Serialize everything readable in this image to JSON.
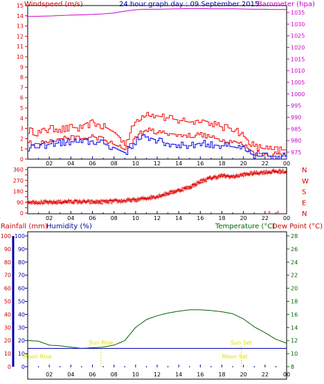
{
  "title": "24 hour graph day : 09 September 2015",
  "colors": {
    "wind": "#e00000",
    "gust": "#ff0000",
    "wind_avg": "#0000ee",
    "baro": "#cc00cc",
    "direction": "#e00000",
    "dir_labels": "#e00000",
    "rain": "#cc0000",
    "humidity": "#0000aa",
    "temp": "#006400",
    "dew": "#cc0000",
    "sun": "#dddd00",
    "moon": "#dddd00",
    "frame": "#000000",
    "hour_tick": "#000088"
  },
  "x_tick_labels": [
    "02",
    "04",
    "06",
    "08",
    "10",
    "12",
    "14",
    "16",
    "18",
    "20",
    "22",
    "00"
  ],
  "chart_data": [
    {
      "type": "line",
      "name": "wind-barometer",
      "left_axis_label": "Windspeed (m/s)",
      "right_axis_label": "Barometer (hpa)",
      "left_ylim": [
        0,
        15
      ],
      "left_ticks": [
        0,
        1,
        2,
        3,
        4,
        5,
        6,
        7,
        8,
        9,
        10,
        11,
        12,
        13,
        14,
        15
      ],
      "right_ylim": [
        972,
        1038
      ],
      "right_ticks": [
        975,
        980,
        985,
        990,
        995,
        1000,
        1005,
        1010,
        1015,
        1020,
        1025,
        1030,
        1035
      ],
      "x_hours": [
        0,
        1,
        2,
        3,
        4,
        5,
        6,
        7,
        8,
        9,
        10,
        11,
        12,
        13,
        14,
        15,
        16,
        17,
        18,
        19,
        20,
        21,
        22,
        23,
        24
      ],
      "series": [
        {
          "key": "gust",
          "values": [
            2.8,
            2.5,
            3.0,
            2.9,
            3.1,
            3.0,
            3.6,
            3.2,
            2.6,
            1.6,
            3.8,
            4.6,
            4.2,
            4.0,
            3.8,
            3.6,
            3.9,
            3.5,
            3.1,
            3.0,
            2.2,
            1.2,
            1.0,
            0.9,
            0.9
          ]
        },
        {
          "key": "wind",
          "values": [
            1.6,
            1.5,
            1.9,
            2.0,
            2.1,
            2.0,
            2.2,
            1.9,
            1.4,
            0.9,
            2.3,
            2.9,
            2.6,
            2.5,
            2.4,
            2.3,
            2.4,
            2.1,
            1.9,
            1.8,
            1.3,
            0.6,
            0.5,
            0.5,
            0.5
          ]
        },
        {
          "key": "wind_avg",
          "values": [
            1.1,
            1.1,
            1.5,
            1.6,
            1.7,
            1.6,
            1.8,
            1.5,
            1.1,
            0.6,
            1.8,
            2.2,
            1.8,
            1.5,
            1.4,
            1.3,
            1.6,
            1.4,
            1.3,
            1.2,
            0.9,
            0.3,
            0.3,
            0.3,
            0.3
          ]
        },
        {
          "key": "baro",
          "values": [
            1033.3,
            1033.4,
            1033.5,
            1033.7,
            1033.9,
            1034.0,
            1034.2,
            1034.4,
            1034.8,
            1035.6,
            1036.2,
            1036.4,
            1036.4,
            1036.5,
            1036.6,
            1036.7,
            1036.7,
            1036.6,
            1036.6,
            1036.6,
            1036.5,
            1036.4,
            1036.4,
            1036.3,
            1036.3
          ]
        }
      ]
    },
    {
      "type": "scatter",
      "name": "wind-direction",
      "ylim": [
        0,
        360
      ],
      "ticks": [
        0,
        45,
        90,
        135,
        180,
        225,
        270,
        315,
        360
      ],
      "right_labels": [
        "N",
        "W",
        "S",
        "E",
        "N"
      ],
      "trend": {
        "x": [
          0,
          1,
          2,
          3,
          4,
          5,
          6,
          7,
          8,
          9,
          10,
          11,
          12,
          13,
          14,
          15,
          16,
          17,
          18,
          19,
          20,
          21,
          22,
          23,
          24
        ],
        "y": [
          95,
          92,
          88,
          94,
          96,
          95,
          92,
          95,
          98,
          104,
          110,
          125,
          140,
          165,
          190,
          215,
          262,
          292,
          310,
          302,
          318,
          332,
          340,
          345,
          345
        ]
      },
      "outliers": [
        {
          "x": 22.4,
          "y": 10
        },
        {
          "x": 23.2,
          "y": 10
        }
      ]
    },
    {
      "type": "line",
      "name": "rain-temperature",
      "left_axis_label": "Rainfall (mm)",
      "left_axis_label2": "Humidity (%)",
      "right_axis_label": "Temperature (°C)",
      "right_axis_label2": "Dew Point (°C)",
      "left_ylim": [
        0,
        100
      ],
      "left_ticks": [
        0,
        10,
        20,
        30,
        40,
        50,
        60,
        70,
        80,
        90,
        100
      ],
      "right_ylim": [
        8,
        28
      ],
      "right_ticks": [
        8,
        10,
        12,
        14,
        16,
        18,
        20,
        22,
        24,
        26,
        28
      ],
      "x_hours": [
        0,
        1,
        2,
        3,
        4,
        5,
        6,
        7,
        8,
        9,
        10,
        11,
        12,
        13,
        14,
        15,
        16,
        17,
        18,
        19,
        20,
        21,
        22,
        23,
        24
      ],
      "series": [
        {
          "key": "temp",
          "values": [
            12.0,
            11.9,
            11.3,
            11.2,
            11.0,
            10.8,
            10.9,
            11.0,
            11.3,
            12.0,
            14.0,
            15.2,
            15.8,
            16.2,
            16.5,
            16.7,
            16.7,
            16.6,
            16.4,
            16.1,
            15.3,
            14.1,
            13.2,
            12.2,
            11.6
          ]
        },
        {
          "key": "humidity",
          "values": [
            10.8,
            10.8,
            10.8,
            10.8,
            10.8,
            10.8,
            10.8,
            10.8,
            10.8,
            10.8,
            10.8,
            10.8,
            10.8,
            10.8,
            10.8,
            10.8,
            10.8,
            10.8,
            10.8,
            10.8,
            10.8,
            10.8,
            10.8,
            10.8,
            10.8
          ]
        }
      ],
      "events": [
        {
          "label": "Moon Rise",
          "hour": 0.9
        },
        {
          "label": "Sun Rise",
          "hour": 6.8
        },
        {
          "label": "Moon Set",
          "hour": 19.2
        },
        {
          "label": "Sun Set",
          "hour": 19.8
        }
      ]
    }
  ]
}
